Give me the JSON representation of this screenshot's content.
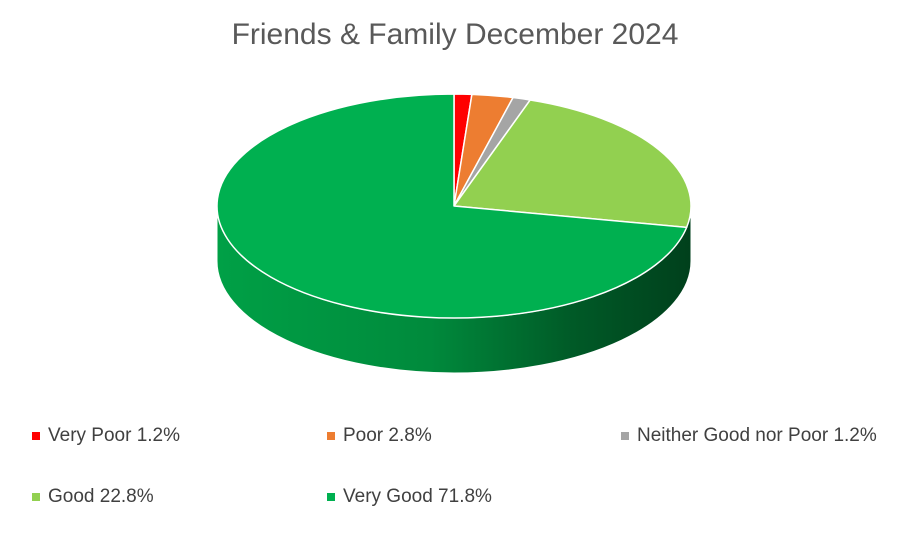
{
  "chart_data": {
    "type": "pie",
    "title": "Friends & Family December 2024",
    "categories": [
      "Very Poor",
      "Poor",
      "Neither Good nor Poor",
      "Good",
      "Very Good"
    ],
    "values": [
      1.2,
      2.8,
      1.2,
      22.8,
      71.8
    ],
    "colors": [
      "#FF0000",
      "#ED7D31",
      "#A5A5A5",
      "#92D050",
      "#00B050"
    ],
    "legend": {
      "placement": "bottom",
      "labels": [
        "Very Poor 1.2%",
        "Poor 2.8%",
        "Neither Good nor Poor 1.2%",
        "Good 22.8%",
        "Very Good 71.8%"
      ]
    },
    "style": "3d"
  }
}
